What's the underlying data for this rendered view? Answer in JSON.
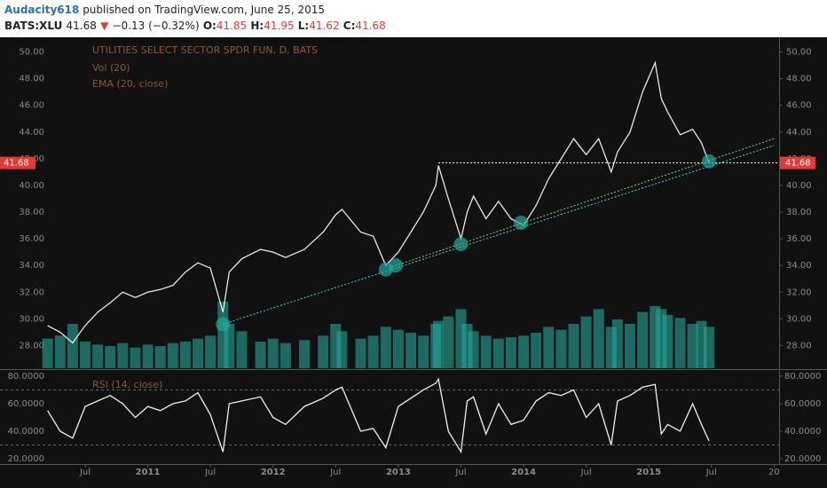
{
  "header": {
    "user": "Audacity618",
    "published": "published on TradingView.com, June 25, 2015",
    "symbol": "BATS:XLU",
    "last": "41.68",
    "arrow": "▼",
    "change": "−0.13 (−0.32%)",
    "o_label": "O:",
    "o": "41.85",
    "h_label": "H:",
    "h": "41.95",
    "l_label": "L:",
    "l": "41.62",
    "c_label": "C:",
    "c": "41.68"
  },
  "chart_data": {
    "type": "line",
    "title": "UTILITIES SELECT SECTOR SPDR FUN, D, BATS",
    "ema_label": "EMA (20, close)",
    "x": [
      2010.2,
      2010.3,
      2010.4,
      2010.5,
      2010.6,
      2010.7,
      2010.8,
      2010.9,
      2011.0,
      2011.1,
      2011.2,
      2011.3,
      2011.4,
      2011.5,
      2011.6,
      2011.65,
      2011.75,
      2011.9,
      2012.0,
      2012.1,
      2012.25,
      2012.4,
      2012.5,
      2012.55,
      2012.7,
      2012.8,
      2012.9,
      2013.0,
      2013.1,
      2013.2,
      2013.3,
      2013.32,
      2013.4,
      2013.5,
      2013.55,
      2013.6,
      2013.7,
      2013.8,
      2013.9,
      2014.0,
      2014.1,
      2014.2,
      2014.3,
      2014.4,
      2014.5,
      2014.6,
      2014.7,
      2014.75,
      2014.85,
      2014.95,
      2015.05,
      2015.1,
      2015.15,
      2015.25,
      2015.35,
      2015.42,
      2015.48
    ],
    "xlim": [
      2009.82,
      2016.04
    ],
    "xticks": [
      {
        "value": 2010.5,
        "label": "Jul"
      },
      2011,
      {
        "value": 2011.5,
        "label": "Jul"
      },
      2012,
      {
        "value": 2012.5,
        "label": "Jul"
      },
      2013,
      {
        "value": 2013.5,
        "label": "Jul"
      },
      2014,
      {
        "value": 2014.5,
        "label": "Jul"
      },
      2015,
      {
        "value": 2015.5,
        "label": "Jul"
      },
      {
        "value": 2016,
        "label": "20"
      }
    ],
    "values": [
      29.5,
      29.0,
      28.2,
      29.5,
      30.5,
      31.2,
      32.0,
      31.6,
      32.0,
      32.2,
      32.5,
      33.5,
      34.2,
      33.8,
      30.5,
      33.5,
      34.5,
      35.2,
      35.0,
      34.6,
      35.2,
      36.5,
      37.8,
      38.2,
      36.5,
      36.2,
      34.0,
      35.0,
      36.5,
      38.0,
      40.0,
      41.5,
      39.0,
      36.0,
      38.0,
      39.2,
      37.5,
      38.8,
      37.5,
      37.0,
      38.5,
      40.5,
      42.0,
      43.5,
      42.3,
      43.5,
      41.0,
      42.5,
      44.0,
      47.0,
      49.2,
      46.5,
      45.5,
      43.8,
      44.2,
      43.2,
      41.68
    ],
    "color": "#e8e8e8",
    "ylim": [
      26.3,
      50.9
    ],
    "yticks": [
      {
        "value": 28,
        "label": "28.00"
      },
      {
        "value": 30,
        "label": "30.00"
      },
      {
        "value": 32,
        "label": "32.00"
      },
      {
        "value": 34,
        "label": "34.00"
      },
      {
        "value": 36,
        "label": "36.00"
      },
      {
        "value": 38,
        "label": "38.00"
      },
      {
        "value": 40,
        "label": "40.00"
      },
      {
        "value": 42,
        "label": "42.00"
      },
      {
        "value": 44,
        "label": "44.00"
      },
      {
        "value": 46,
        "label": "46.00"
      },
      {
        "value": 48,
        "label": "48.00"
      },
      {
        "value": 50,
        "label": "50.00"
      }
    ],
    "last_price": 41.68,
    "trendlines": [
      {
        "color": "#4dd0e1",
        "x": [
          2011.6,
          2016.0
        ],
        "y": [
          29.6,
          43.0
        ]
      },
      {
        "color": "#9ccc65",
        "x": [
          2012.95,
          2016.0
        ],
        "y": [
          33.9,
          43.5
        ]
      },
      {
        "color": "#ffffff",
        "x": [
          2013.32,
          2016.04
        ],
        "y": [
          41.68,
          41.68
        ]
      }
    ],
    "touch_points": {
      "x": [
        2011.6,
        2012.9,
        2012.98,
        2013.5,
        2013.98,
        2015.48
      ],
      "y": [
        29.6,
        33.7,
        34.0,
        35.6,
        37.2,
        41.8
      ],
      "color": "#26a69a"
    },
    "volume": {
      "name": "Vol (20)",
      "color": "#26a69a",
      "values": [
        20,
        22,
        30,
        18,
        16,
        15,
        17,
        14,
        16,
        15,
        17,
        18,
        20,
        22,
        45,
        30,
        25,
        18,
        20,
        17,
        19,
        22,
        30,
        25,
        20,
        22,
        28,
        26,
        24,
        22,
        30,
        32,
        35,
        40,
        30,
        25,
        22,
        20,
        21,
        22,
        24,
        28,
        26,
        30,
        35,
        40,
        28,
        33,
        30,
        38,
        42,
        40,
        36,
        34,
        30,
        32,
        28
      ]
    },
    "rsi": {
      "name": "RSI (14, close)",
      "color": "#f0f0f0",
      "values": [
        55,
        40,
        35,
        58,
        62,
        66,
        60,
        50,
        58,
        55,
        60,
        62,
        68,
        52,
        25,
        60,
        62,
        65,
        50,
        45,
        58,
        64,
        70,
        72,
        40,
        42,
        28,
        58,
        64,
        70,
        75,
        78,
        40,
        25,
        62,
        65,
        38,
        60,
        45,
        48,
        62,
        68,
        66,
        70,
        50,
        60,
        30,
        62,
        66,
        72,
        74,
        38,
        45,
        40,
        60,
        45,
        33
      ],
      "ylim": [
        16.8,
        83.9
      ],
      "guides": [
        70,
        30
      ],
      "yticks": [
        {
          "value": 20,
          "label": "20.0000"
        },
        {
          "value": 40,
          "label": "40.0000"
        },
        {
          "value": 60,
          "label": "60.0000"
        },
        {
          "value": 80,
          "label": "80.0000"
        }
      ]
    }
  }
}
